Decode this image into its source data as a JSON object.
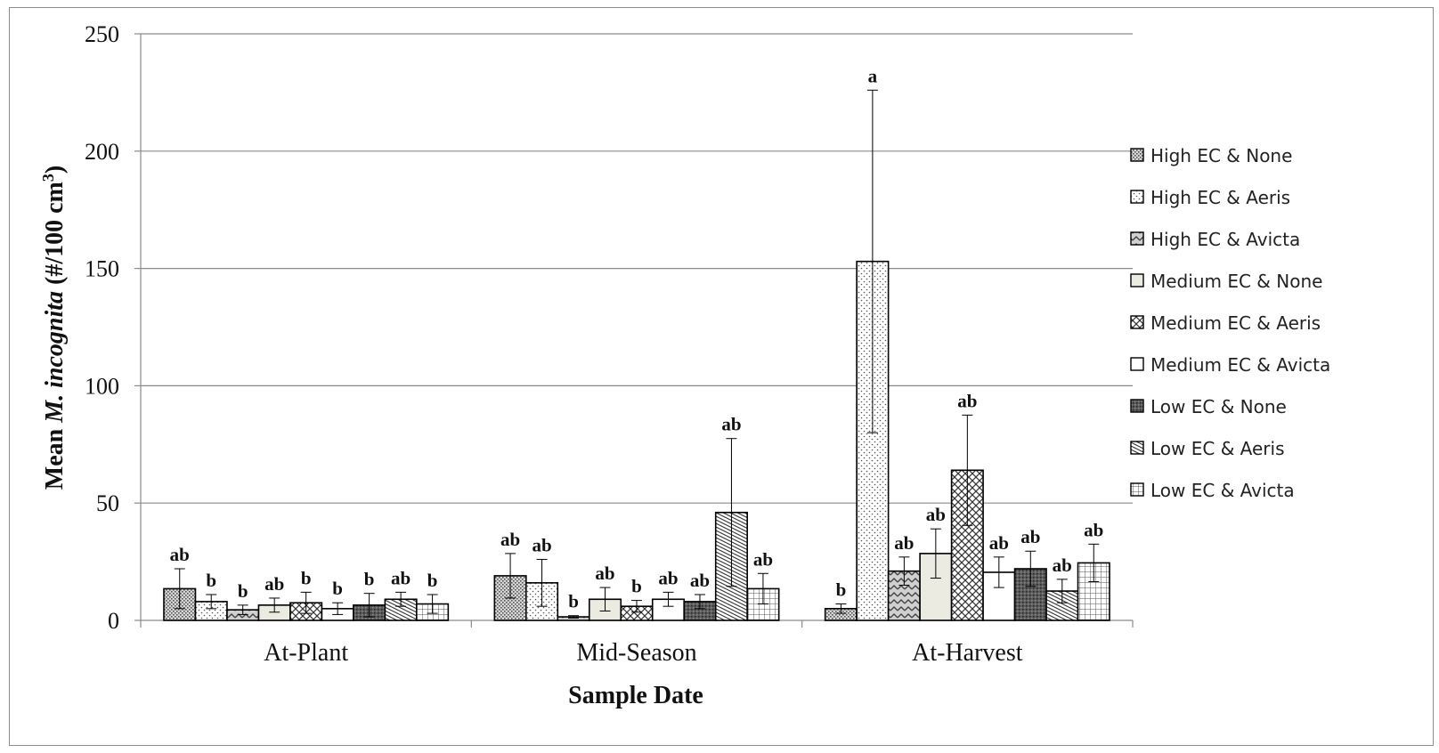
{
  "chart_data": {
    "type": "bar",
    "xlabel": "Sample Date",
    "ylabel_parts": {
      "pre": "Mean ",
      "italic": "M. incognita",
      "post": " (#/100 cm",
      "sup": "3",
      "close": ")"
    },
    "ylim": [
      0,
      250
    ],
    "yticks": [
      "0",
      "50",
      "100",
      "150",
      "200",
      "250"
    ],
    "ytick_values": [
      0,
      50,
      100,
      150,
      200,
      250
    ],
    "grid": "horizontal",
    "legend_position": "right",
    "categories": [
      "At-Plant",
      "Mid-Season",
      "At-Harvest"
    ],
    "series": [
      {
        "name": "High EC & None",
        "pattern": "dots-dense",
        "values": [
          13.5,
          19,
          5
        ],
        "err": [
          8.5,
          9.5,
          2
        ],
        "sig": [
          "ab",
          "ab",
          "b"
        ]
      },
      {
        "name": "High EC & Aeris",
        "pattern": "dots-sparse",
        "values": [
          8,
          16,
          153
        ],
        "err": [
          3,
          10,
          73
        ],
        "sig": [
          "b",
          "ab",
          "a"
        ]
      },
      {
        "name": "High EC & Avicta",
        "pattern": "zigzag",
        "values": [
          4.5,
          1.5,
          21
        ],
        "err": [
          2,
          0.5,
          6
        ],
        "sig": [
          "b",
          "b",
          "ab"
        ]
      },
      {
        "name": "Medium EC & None",
        "pattern": "solid-beige",
        "values": [
          6.5,
          9,
          28.5
        ],
        "err": [
          3,
          5,
          10.5
        ],
        "sig": [
          "ab",
          "ab",
          "ab"
        ]
      },
      {
        "name": "Medium EC & Aeris",
        "pattern": "crosshatch",
        "values": [
          7.5,
          6,
          64
        ],
        "err": [
          4.5,
          2.5,
          23.5
        ],
        "sig": [
          "b",
          "b",
          "ab"
        ]
      },
      {
        "name": "Medium EC & Avicta",
        "pattern": "white",
        "values": [
          5,
          9,
          20.5
        ],
        "err": [
          2.5,
          3,
          6.5
        ],
        "sig": [
          "b",
          "ab",
          "ab"
        ]
      },
      {
        "name": "Low EC & None",
        "pattern": "dark-dots",
        "values": [
          6.5,
          8,
          22
        ],
        "err": [
          5,
          3,
          7.5
        ],
        "sig": [
          "b",
          "ab",
          "ab"
        ]
      },
      {
        "name": "Low EC & Aeris",
        "pattern": "diag-lines",
        "values": [
          9,
          46,
          12.5
        ],
        "err": [
          3,
          31.5,
          5
        ],
        "sig": [
          "ab",
          "ab",
          "ab"
        ]
      },
      {
        "name": "Low EC & Avicta",
        "pattern": "grid-squares",
        "values": [
          7,
          13.5,
          24.5
        ],
        "err": [
          4,
          6.5,
          8
        ],
        "sig": [
          "b",
          "ab",
          "ab"
        ]
      }
    ]
  }
}
